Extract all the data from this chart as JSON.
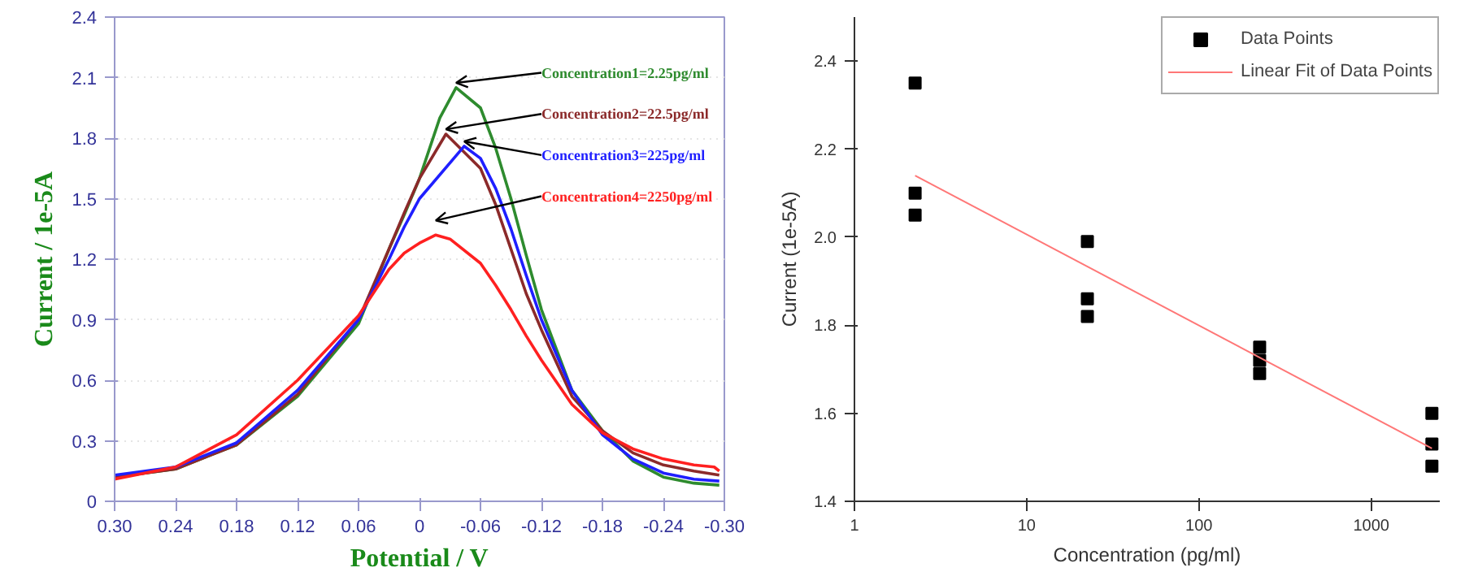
{
  "chart_data": [
    {
      "type": "line",
      "xlabel": "Potential / V",
      "ylabel": "Current / 1e-5A",
      "grid": "y",
      "xlim": [
        0.3,
        -0.3
      ],
      "xticks": [
        {
          "value": 0.3,
          "label": "0.30"
        },
        0.24,
        0.18,
        0.12,
        0.06,
        0,
        -0.06,
        -0.12,
        -0.18,
        -0.24,
        {
          "value": -0.3,
          "label": "-0.30"
        }
      ],
      "ylim": [
        0,
        2.4
      ],
      "yticks": [
        0,
        0.3,
        0.6,
        0.9,
        1.2,
        1.5,
        1.8,
        2.1,
        2.4
      ],
      "series": [
        {
          "name": "Concentration1=2.25pg/ml",
          "color": "#2e8b2e",
          "x": [
            0.3,
            0.24,
            0.18,
            0.12,
            0.06,
            0.03,
            0.015,
            0,
            -0.02,
            -0.036,
            -0.06,
            -0.075,
            -0.09,
            -0.105,
            -0.12,
            -0.15,
            -0.18,
            -0.21,
            -0.24,
            -0.27,
            -0.295
          ],
          "values": [
            0.12,
            0.16,
            0.28,
            0.52,
            0.88,
            1.25,
            1.42,
            1.6,
            1.9,
            2.05,
            1.95,
            1.75,
            1.5,
            1.22,
            0.95,
            0.55,
            0.35,
            0.2,
            0.12,
            0.09,
            0.08
          ]
        },
        {
          "name": "Concentration2=22.5pg/ml",
          "color": "#8b2a2a",
          "x": [
            0.3,
            0.24,
            0.18,
            0.12,
            0.06,
            0.03,
            0.015,
            0,
            -0.026,
            -0.06,
            -0.075,
            -0.09,
            -0.105,
            -0.12,
            -0.15,
            -0.18,
            -0.21,
            -0.24,
            -0.27,
            -0.295
          ],
          "values": [
            0.12,
            0.16,
            0.28,
            0.53,
            0.9,
            1.25,
            1.43,
            1.6,
            1.82,
            1.65,
            1.47,
            1.25,
            1.03,
            0.85,
            0.52,
            0.35,
            0.24,
            0.18,
            0.15,
            0.13
          ]
        },
        {
          "name": "Concentration3=225pg/ml",
          "color": "#1f1fff",
          "x": [
            0.3,
            0.24,
            0.18,
            0.12,
            0.06,
            0.03,
            0.015,
            0,
            -0.044,
            -0.06,
            -0.075,
            -0.09,
            -0.105,
            -0.12,
            -0.15,
            -0.18,
            -0.21,
            -0.24,
            -0.27,
            -0.295
          ],
          "values": [
            0.13,
            0.17,
            0.29,
            0.55,
            0.9,
            1.2,
            1.36,
            1.5,
            1.76,
            1.7,
            1.55,
            1.35,
            1.12,
            0.9,
            0.55,
            0.33,
            0.21,
            0.14,
            0.11,
            0.1
          ]
        },
        {
          "name": "Concentration4=2250pg/ml",
          "color": "#ff2020",
          "x": [
            0.3,
            0.24,
            0.18,
            0.12,
            0.06,
            0.03,
            0.015,
            0,
            -0.016,
            -0.03,
            -0.06,
            -0.075,
            -0.09,
            -0.105,
            -0.12,
            -0.15,
            -0.18,
            -0.21,
            -0.24,
            -0.27,
            -0.29,
            -0.295
          ],
          "values": [
            0.11,
            0.17,
            0.33,
            0.6,
            0.92,
            1.15,
            1.23,
            1.28,
            1.32,
            1.3,
            1.18,
            1.07,
            0.95,
            0.82,
            0.7,
            0.48,
            0.34,
            0.26,
            0.21,
            0.18,
            0.17,
            0.15
          ]
        }
      ]
    },
    {
      "type": "scatter",
      "xlabel": "Concentration (pg/ml)",
      "ylabel": "Current (1e-5A)",
      "log": "x",
      "legend": "top right",
      "xlim": [
        1,
        2500
      ],
      "xticks": [
        1,
        10,
        100,
        1000
      ],
      "ylim": [
        1.4,
        2.5
      ],
      "yticks": [
        1.4,
        1.6,
        1.8,
        {
          "value": 2.0,
          "label": "2.0"
        },
        2.2,
        2.4
      ],
      "series": [
        {
          "name": "Data Points",
          "color": "#000000",
          "marker": "square",
          "x": [
            2.25,
            2.25,
            2.25,
            22.5,
            22.5,
            22.5,
            225,
            225,
            225,
            2250,
            2250,
            2250
          ],
          "values": [
            2.35,
            2.1,
            2.05,
            1.99,
            1.86,
            1.82,
            1.75,
            1.72,
            1.69,
            1.6,
            1.53,
            1.48
          ]
        },
        {
          "name": "Linear Fit of Data Points",
          "type": "line",
          "color": "#ff7777",
          "x": [
            2.25,
            2250
          ],
          "values": [
            2.14,
            1.52
          ]
        }
      ]
    }
  ]
}
